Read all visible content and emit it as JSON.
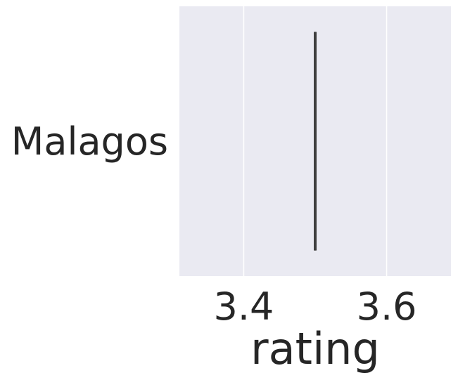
{
  "chart_data": {
    "type": "box",
    "orientation": "horizontal",
    "categories": [
      "Malagos"
    ],
    "series": [
      {
        "category": "Malagos",
        "min": 3.5,
        "q1": 3.5,
        "median": 3.5,
        "q3": 3.5,
        "max": 3.5
      }
    ],
    "xlabel": "rating",
    "ylabel": "",
    "xlim": [
      3.31,
      3.69
    ],
    "x_ticks": [
      3.4,
      3.6
    ],
    "x_tick_labels": [
      "3.4",
      "3.6"
    ],
    "grid": true,
    "colors": {
      "plot_background": "#EAEAF2",
      "grid": "#FFFFFF",
      "box_line": "#3F3F3F",
      "text": "#262626"
    }
  }
}
